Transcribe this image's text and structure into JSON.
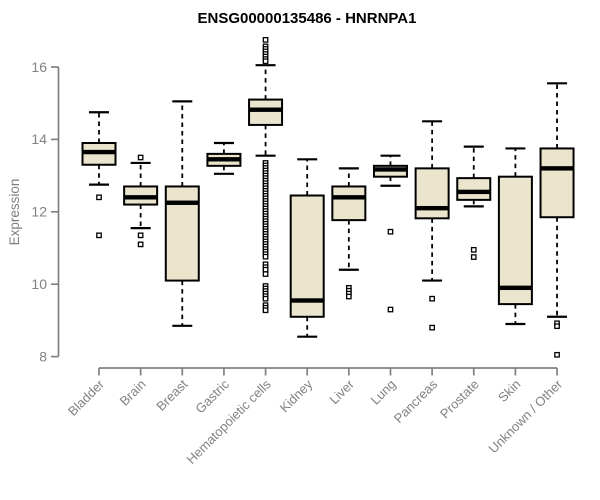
{
  "chart_data": {
    "type": "boxplot",
    "title": "ENSG00000135486 - HNRNPA1",
    "ylabel": "Expression",
    "xlabel": "",
    "ylim": [
      8,
      16
    ],
    "yticks": [
      8,
      10,
      12,
      14,
      16
    ],
    "grid": false,
    "legend": "none",
    "box_fill": "#EBE5CE",
    "box_stroke": "#000000",
    "axis_color": "#828282",
    "background": "#ffffff",
    "categories": [
      "Bladder",
      "Brain",
      "Breast",
      "Gastric",
      "Hematopoietic cells",
      "Kidney",
      "Liver",
      "Lung",
      "Pancreas",
      "Prostate",
      "Skin",
      "Unknown / Other"
    ],
    "boxes": [
      {
        "category": "Bladder",
        "whisker_low": 12.75,
        "q1": 13.3,
        "median": 13.65,
        "q3": 13.9,
        "whisker_high": 14.75,
        "outliers": [
          12.4,
          11.35
        ]
      },
      {
        "category": "Brain",
        "whisker_low": 11.55,
        "q1": 12.2,
        "median": 12.4,
        "q3": 12.7,
        "whisker_high": 13.35,
        "outliers": [
          13.5,
          11.35,
          11.1
        ]
      },
      {
        "category": "Breast",
        "whisker_low": 8.85,
        "q1": 10.1,
        "median": 12.25,
        "q3": 12.7,
        "whisker_high": 15.05,
        "outliers": []
      },
      {
        "category": "Gastric",
        "whisker_low": 13.05,
        "q1": 13.27,
        "median": 13.45,
        "q3": 13.6,
        "whisker_high": 13.9,
        "outliers": []
      },
      {
        "category": "Hematopoietic cells",
        "whisker_low": 13.55,
        "q1": 14.4,
        "median": 14.82,
        "q3": 15.1,
        "whisker_high": 16.05,
        "outliers": [
          16.75,
          16.57,
          16.5,
          16.43,
          16.36,
          16.29,
          16.22,
          16.16,
          13.35,
          13.28,
          13.21,
          13.14,
          13.07,
          13.0,
          12.93,
          12.86,
          12.79,
          12.72,
          12.65,
          12.58,
          12.51,
          12.44,
          12.37,
          12.3,
          12.23,
          12.16,
          12.09,
          12.02,
          11.95,
          11.88,
          11.81,
          11.74,
          11.67,
          11.6,
          11.53,
          11.46,
          11.39,
          11.32,
          11.25,
          11.18,
          11.11,
          11.04,
          10.97,
          10.9,
          10.83,
          10.76,
          10.55,
          10.47,
          10.4,
          10.28,
          9.95,
          9.88,
          9.81,
          9.74,
          9.67,
          9.6,
          9.42,
          9.35,
          9.28
        ]
      },
      {
        "category": "Kidney",
        "whisker_low": 8.55,
        "q1": 9.1,
        "median": 9.55,
        "q3": 12.45,
        "whisker_high": 13.45,
        "outliers": []
      },
      {
        "category": "Liver",
        "whisker_low": 10.4,
        "q1": 11.77,
        "median": 12.4,
        "q3": 12.7,
        "whisker_high": 13.2,
        "outliers": [
          9.9,
          9.82,
          9.74,
          9.66
        ]
      },
      {
        "category": "Lung",
        "whisker_low": 12.72,
        "q1": 12.97,
        "median": 13.17,
        "q3": 13.27,
        "whisker_high": 13.55,
        "outliers": [
          11.45,
          9.3
        ]
      },
      {
        "category": "Pancreas",
        "whisker_low": 10.1,
        "q1": 11.82,
        "median": 12.1,
        "q3": 13.2,
        "whisker_high": 14.5,
        "outliers": [
          9.6,
          8.8
        ]
      },
      {
        "category": "Prostate",
        "whisker_low": 12.15,
        "q1": 12.33,
        "median": 12.55,
        "q3": 12.93,
        "whisker_high": 13.8,
        "outliers": [
          10.95,
          10.75
        ]
      },
      {
        "category": "Skin",
        "whisker_low": 8.9,
        "q1": 9.45,
        "median": 9.9,
        "q3": 12.97,
        "whisker_high": 13.75,
        "outliers": []
      },
      {
        "category": "Unknown / Other",
        "whisker_low": 9.1,
        "q1": 11.85,
        "median": 13.2,
        "q3": 13.75,
        "whisker_high": 15.55,
        "outliers": [
          8.92,
          8.84,
          8.05
        ]
      }
    ]
  }
}
